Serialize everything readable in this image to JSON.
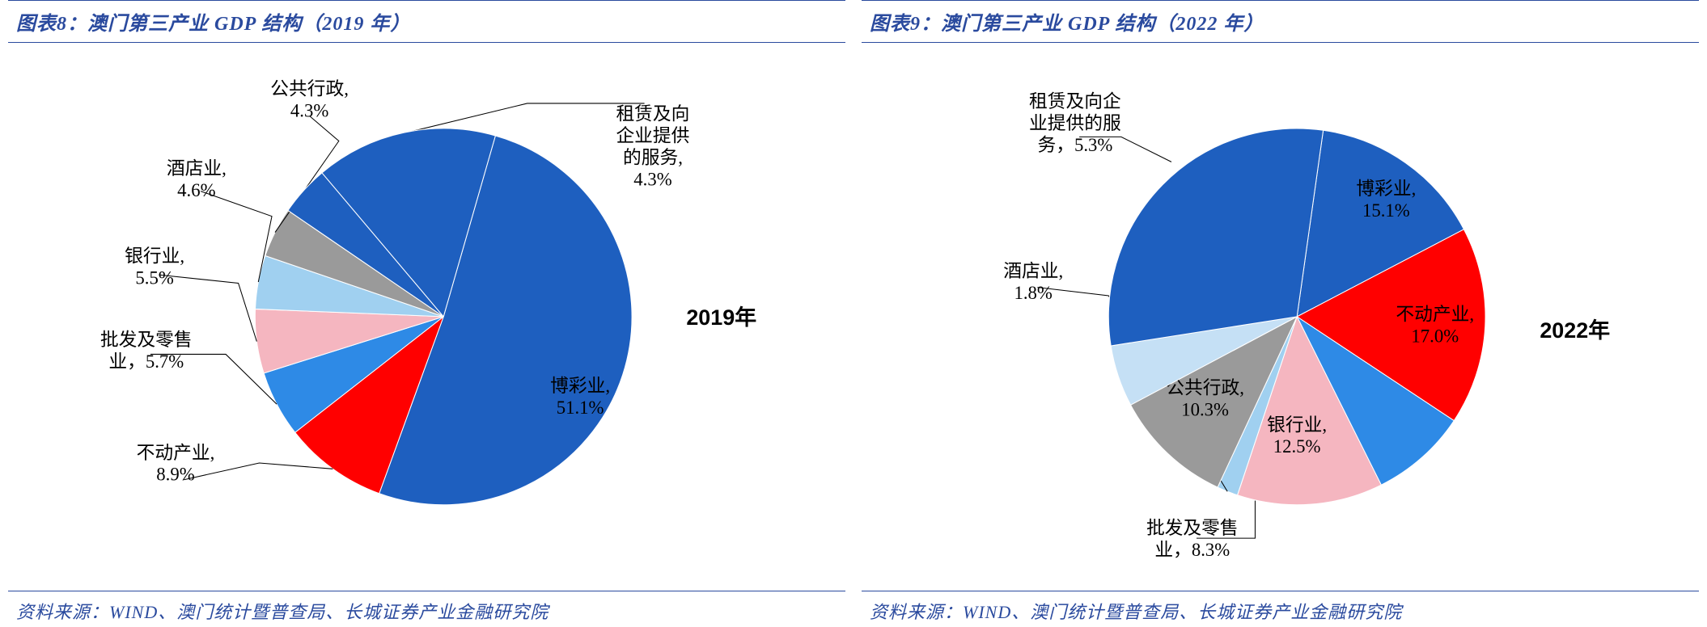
{
  "left_panel": {
    "title": "图表8：澳门第三产业 GDP 结构（2019 年）",
    "source": "资料来源：WIND、澳门统计暨普查局、长城证券产业金融研究院",
    "chart": {
      "type": "pie",
      "year_label": "2019年",
      "background_color": "#ffffff",
      "label_fontsize": 22,
      "year_fontsize": 26,
      "slices": [
        {
          "name": "博彩业",
          "value": 51.1,
          "color": "#1e5fbf",
          "label": "博彩业,\n51.1%",
          "label_pos": "inside"
        },
        {
          "name": "不动产业",
          "value": 8.9,
          "color": "#ff0000",
          "label": "不动产业,\n8.9%",
          "label_pos": "outside"
        },
        {
          "name": "批发及零售业",
          "value": 5.7,
          "color": "#2e8ae6",
          "label": "批发及零售\n业，5.7%",
          "label_pos": "outside"
        },
        {
          "name": "银行业",
          "value": 5.5,
          "color": "#f5b6c0",
          "label": "银行业,\n5.5%",
          "label_pos": "outside"
        },
        {
          "name": "酒店业",
          "value": 4.6,
          "color": "#a0d0f0",
          "label": "酒店业,\n4.6%",
          "label_pos": "outside"
        },
        {
          "name": "公共行政",
          "value": 4.3,
          "color": "#9a9a9a",
          "label": "公共行政,\n4.3%",
          "label_pos": "outside"
        },
        {
          "name": "租赁及向企业提供的服务",
          "value": 4.3,
          "color": "#1e5fbf",
          "label": "租赁及向\n企业提供\n的服务,\n4.3%",
          "label_pos": "outside"
        }
      ],
      "unshown_remainder": 15.6
    }
  },
  "right_panel": {
    "title": "图表9：澳门第三产业 GDP 结构（2022 年）",
    "source": "资料来源：WIND、澳门统计暨普查局、长城证券产业金融研究院",
    "chart": {
      "type": "pie",
      "year_label": "2022年",
      "background_color": "#ffffff",
      "label_fontsize": 22,
      "year_fontsize": 26,
      "slices": [
        {
          "name": "博彩业",
          "value": 15.1,
          "color": "#1e5fbf",
          "label": "博彩业,\n15.1%",
          "label_pos": "inside"
        },
        {
          "name": "不动产业",
          "value": 17.0,
          "color": "#ff0000",
          "label": "不动产业,\n17.0%",
          "label_pos": "inside"
        },
        {
          "name": "批发及零售业",
          "value": 8.3,
          "color": "#2e8ae6",
          "label": "批发及零售\n业，8.3%",
          "label_pos": "outside"
        },
        {
          "name": "银行业",
          "value": 12.5,
          "color": "#f5b6c0",
          "label": "银行业,\n12.5%",
          "label_pos": "inside"
        },
        {
          "name": "酒店业",
          "value": 1.8,
          "color": "#a0d0f0",
          "label": "酒店业,\n1.8%",
          "label_pos": "outside"
        },
        {
          "name": "公共行政",
          "value": 10.3,
          "color": "#9a9a9a",
          "label": "公共行政,\n10.3%",
          "label_pos": "inside"
        },
        {
          "name": "租赁及向企业提供的服务",
          "value": 5.3,
          "color": "#c5e0f5",
          "label": "租赁及向企\n业提供的服\n务，5.3%",
          "label_pos": "outside"
        }
      ],
      "unshown_remainder": 29.7
    }
  },
  "colors": {
    "header_rule": "#2a4a9e",
    "header_text": "#2a4a9e",
    "body_text": "#000000"
  }
}
